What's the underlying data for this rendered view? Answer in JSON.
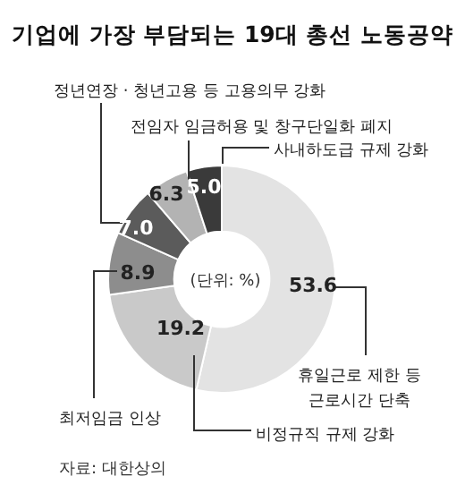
{
  "chart_data": {
    "type": "donut",
    "title": "기업에 가장 부담되는 19대 총선 노동공약",
    "categories": [
      "휴일근로 제한 등 근로시간 단축",
      "비정규직 규제 강화",
      "최저임금 인상",
      "정년연장 · 청년고용 등 고용의무 강화",
      "전임자 임금허용 및 창구단일화 폐지",
      "사내하도급 규제 강화"
    ],
    "values": [
      53.6,
      19.2,
      8.9,
      7.0,
      6.3,
      5.0
    ],
    "colors": [
      "#e3e3e3",
      "#c9c9c9",
      "#8d8d8d",
      "#5b5b5b",
      "#b3b3b3",
      "#3a3a3a"
    ],
    "value_labels": [
      "53.6",
      "19.2",
      "8.9",
      "7.0",
      "6.3",
      "5.0"
    ],
    "legend": false,
    "annotations": [
      "(단위: %)",
      "자료: 대한상의"
    ]
  }
}
